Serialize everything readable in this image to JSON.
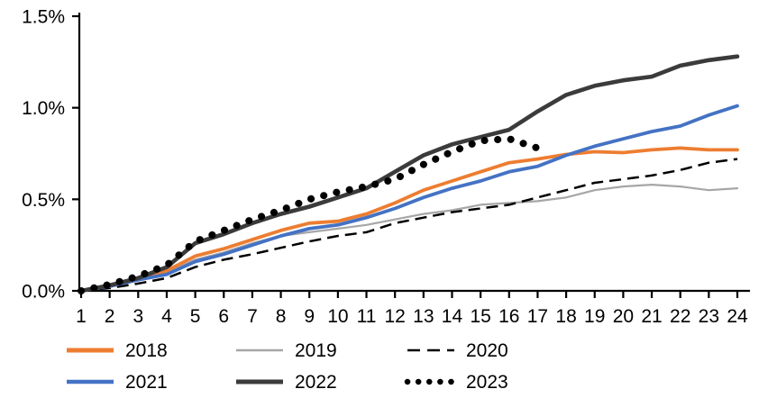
{
  "chart_data": {
    "type": "line",
    "title": "",
    "xlabel": "",
    "ylabel": "",
    "x": [
      1,
      2,
      3,
      4,
      5,
      6,
      7,
      8,
      9,
      10,
      11,
      12,
      13,
      14,
      15,
      16,
      17,
      18,
      19,
      20,
      21,
      22,
      23,
      24
    ],
    "x_tick_labels": [
      "1",
      "2",
      "3",
      "4",
      "5",
      "6",
      "7",
      "8",
      "9",
      "10",
      "11",
      "12",
      "13",
      "14",
      "15",
      "16",
      "17",
      "18",
      "19",
      "20",
      "21",
      "22",
      "23",
      "24"
    ],
    "ylim": [
      0,
      1.5
    ],
    "y_tick_values": [
      0,
      0.5,
      1.0,
      1.5
    ],
    "y_tick_labels": [
      "0.0%",
      "0.5%",
      "1.0%",
      "1.5%"
    ],
    "grid": false,
    "legend_position": "bottom",
    "axis_color": "#000000",
    "series": [
      {
        "name": "2018",
        "color": "#ED7D31",
        "style": "solid",
        "width": 3.8,
        "values": [
          0,
          0.03,
          0.07,
          0.11,
          0.19,
          0.23,
          0.28,
          0.33,
          0.37,
          0.38,
          0.42,
          0.48,
          0.55,
          0.6,
          0.65,
          0.7,
          0.72,
          0.745,
          0.76,
          0.755,
          0.77,
          0.78,
          0.77,
          0.77
        ]
      },
      {
        "name": "2019",
        "color": "#A6A6A6",
        "style": "solid",
        "width": 2.2,
        "values": [
          0,
          0.02,
          0.06,
          0.1,
          0.17,
          0.21,
          0.26,
          0.3,
          0.32,
          0.34,
          0.36,
          0.39,
          0.42,
          0.44,
          0.47,
          0.48,
          0.49,
          0.51,
          0.55,
          0.57,
          0.58,
          0.57,
          0.55,
          0.56
        ]
      },
      {
        "name": "2020",
        "color": "#000000",
        "style": "dashed",
        "width": 2.5,
        "values": [
          0,
          0.015,
          0.04,
          0.07,
          0.13,
          0.17,
          0.2,
          0.235,
          0.27,
          0.3,
          0.32,
          0.37,
          0.4,
          0.43,
          0.45,
          0.47,
          0.51,
          0.55,
          0.59,
          0.61,
          0.63,
          0.66,
          0.7,
          0.72
        ]
      },
      {
        "name": "2021",
        "color": "#4472C4",
        "style": "solid",
        "width": 3.8,
        "values": [
          0,
          0.025,
          0.06,
          0.09,
          0.16,
          0.2,
          0.25,
          0.3,
          0.34,
          0.36,
          0.4,
          0.45,
          0.51,
          0.56,
          0.6,
          0.65,
          0.68,
          0.74,
          0.79,
          0.83,
          0.87,
          0.9,
          0.96,
          1.01
        ]
      },
      {
        "name": "2022",
        "color": "#3B3B3B",
        "style": "solid",
        "width": 4.6,
        "values": [
          0,
          0.03,
          0.07,
          0.13,
          0.26,
          0.31,
          0.37,
          0.42,
          0.46,
          0.51,
          0.56,
          0.65,
          0.74,
          0.8,
          0.84,
          0.88,
          0.98,
          1.07,
          1.12,
          1.15,
          1.17,
          1.23,
          1.26,
          1.28
        ]
      },
      {
        "name": "2023",
        "color": "#000000",
        "style": "dotted",
        "width": 8,
        "values": [
          0,
          0.035,
          0.08,
          0.14,
          0.27,
          0.33,
          0.39,
          0.44,
          0.5,
          0.54,
          0.57,
          0.61,
          0.69,
          0.76,
          0.82,
          0.83,
          0.78,
          null,
          null,
          null,
          null,
          null,
          null,
          null
        ]
      }
    ]
  }
}
